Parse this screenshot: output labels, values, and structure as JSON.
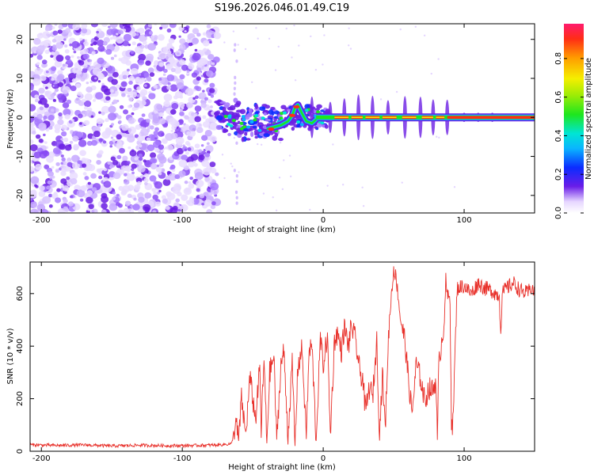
{
  "title": "S196.2026.046.01.49.C19",
  "chart_data": [
    {
      "type": "heatmap",
      "panel": "spectrogram",
      "xlabel": "Height of straight line (km)",
      "ylabel": "Frequency (Hz)",
      "xlim": [
        -208,
        150
      ],
      "ylim": [
        -24.5,
        24
      ],
      "xticks": [
        -200,
        -100,
        0,
        100
      ],
      "yticks": [
        -20,
        -10,
        0,
        10,
        20
      ],
      "noise_region_x": [
        -208,
        -75
      ],
      "signal_line_frequency": 0,
      "colorbar": {
        "label": "Normalized spectral amplitude",
        "range": [
          0.0,
          0.98
        ],
        "ticks": [
          0.0,
          0.2,
          0.4,
          0.6,
          0.8
        ]
      }
    },
    {
      "type": "line",
      "panel": "snr",
      "xlabel": "Height of straight line (km)",
      "ylabel": "SNR (10 * v/v)",
      "xlim": [
        -208,
        150
      ],
      "ylim": [
        0,
        720
      ],
      "xticks": [
        -200,
        -100,
        0,
        100
      ],
      "yticks": [
        0,
        200,
        400,
        600
      ],
      "series": [
        {
          "name": "SNR",
          "color": "#e8302a",
          "x": [
            -208,
            -190,
            -170,
            -150,
            -130,
            -110,
            -90,
            -75,
            -65,
            -62,
            -60,
            -58,
            -55,
            -52,
            -48,
            -45,
            -44,
            -42,
            -40,
            -38,
            -35,
            -33,
            -30,
            -28,
            -25,
            -22,
            -20,
            -18,
            -15,
            -12,
            -10,
            -8,
            -5,
            -2,
            0,
            3,
            5,
            8,
            10,
            13,
            15,
            18,
            20,
            23,
            26,
            28,
            30,
            33,
            35,
            38,
            40,
            42,
            44,
            46,
            48,
            49,
            50,
            52,
            55,
            58,
            60,
            63,
            66,
            69,
            72,
            75,
            78,
            80,
            81,
            82,
            83,
            85,
            86,
            87,
            88,
            90,
            91,
            92,
            95,
            100,
            105,
            110,
            115,
            120,
            125,
            126,
            127,
            130,
            135,
            140,
            145,
            148,
            150
          ],
          "values": [
            25,
            22,
            24,
            20,
            23,
            21,
            22,
            24,
            28,
            110,
            40,
            200,
            60,
            280,
            120,
            320,
            80,
            350,
            30,
            300,
            360,
            40,
            330,
            380,
            60,
            330,
            20,
            320,
            390,
            50,
            380,
            400,
            40,
            430,
            330,
            440,
            60,
            420,
            450,
            380,
            470,
            400,
            480,
            420,
            300,
            280,
            150,
            250,
            200,
            420,
            60,
            300,
            80,
            400,
            580,
            620,
            700,
            650,
            500,
            420,
            300,
            140,
            330,
            280,
            190,
            240,
            230,
            280,
            40,
            320,
            380,
            450,
            520,
            650,
            590,
            580,
            120,
            100,
            620,
            630,
            600,
            640,
            620,
            610,
            590,
            460,
            600,
            620,
            640,
            610,
            600,
            630,
            590
          ]
        }
      ]
    }
  ]
}
